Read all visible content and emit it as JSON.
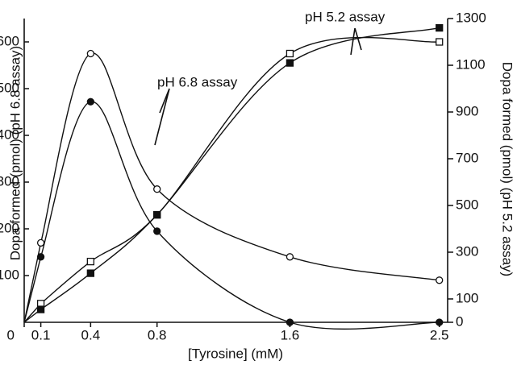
{
  "chart_data": {
    "type": "line",
    "x_label": "[Tyrosine] (mM)",
    "y_label": "Dopa formed (pmol) (pH 6.8 assay)",
    "y2_label": "Dopa formed (pmol) (pH 5.2 assay)",
    "annotations": [
      "pH 6.8 assay",
      "pH 5.2 assay"
    ],
    "x": [
      0.1,
      0.4,
      0.8,
      1.6,
      2.5
    ],
    "xlim": [
      0,
      2.55
    ],
    "xticks": [
      0,
      0.1,
      0.4,
      0.8,
      1.6,
      2.5
    ],
    "ylim": [
      0,
      650
    ],
    "yticks": [
      100,
      200,
      300,
      400,
      500,
      600
    ],
    "y2lim": [
      0,
      1300
    ],
    "y2ticks": [
      0,
      100,
      300,
      500,
      700,
      900,
      1100,
      1300
    ],
    "series": [
      {
        "color": "#111111",
        "marker": "circle",
        "filled": false,
        "values": [
          170,
          575,
          285,
          140,
          90
        ]
      },
      {
        "color": "#111111",
        "marker": "circle",
        "filled": true,
        "values": [
          140,
          472,
          195,
          0,
          0
        ]
      },
      {
        "color": "#111111",
        "marker": "square",
        "filled": false,
        "axis": "y2",
        "values": [
          80,
          260,
          460,
          1150,
          1200
        ]
      },
      {
        "color": "#111111",
        "marker": "square",
        "filled": true,
        "axis": "y2",
        "values": [
          55,
          210,
          460,
          1110,
          1260
        ]
      }
    ]
  }
}
